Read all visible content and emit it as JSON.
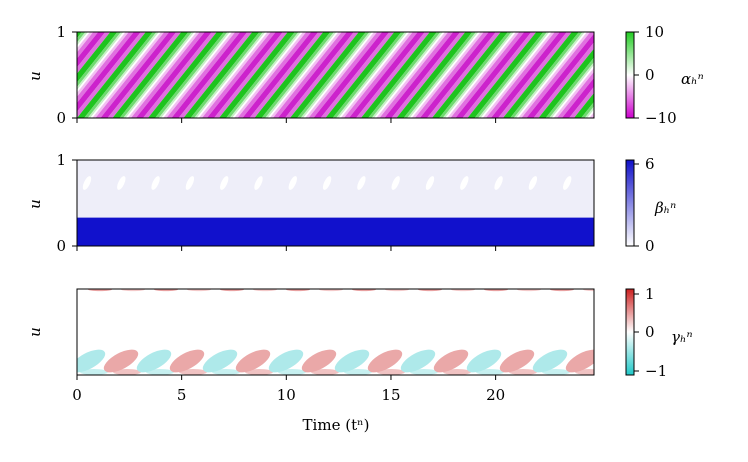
{
  "chart_data": [
    {
      "type": "heatmap",
      "ylabel": "u",
      "yticks": [
        "0",
        "1"
      ],
      "ylim": [
        0,
        1
      ],
      "colorbar": {
        "label": "αₕⁿ",
        "ticks": [
          "10",
          "0",
          "−10"
        ],
        "range": [
          -10,
          10
        ],
        "colors": [
          "#cc00cc",
          "#ffffff",
          "#22cc22"
        ]
      }
    },
    {
      "type": "heatmap",
      "ylabel": "u",
      "yticks": [
        "0",
        "1"
      ],
      "ylim": [
        0,
        1
      ],
      "band_upper": 0.33,
      "colorbar": {
        "label": "βₕⁿ",
        "ticks": [
          "6",
          "0"
        ],
        "range": [
          0,
          6.3
        ],
        "colors": [
          "#ffffff",
          "#1010c8"
        ]
      }
    },
    {
      "type": "heatmap",
      "ylabel": "u",
      "yticks": [],
      "colorbar": {
        "label": "γₕⁿ",
        "ticks": [
          "1",
          "0",
          "−1"
        ],
        "range": [
          -1,
          1
        ],
        "colors": [
          "#20c8c8",
          "#ffffff",
          "#cc2020"
        ]
      }
    }
  ],
  "x_axis": {
    "label": "Time (tⁿ)",
    "ticks": [
      "0",
      "5",
      "10",
      "15",
      "20"
    ],
    "tick_values": [
      0,
      5,
      10,
      15,
      20
    ],
    "xlim": [
      0,
      24.7
    ]
  }
}
